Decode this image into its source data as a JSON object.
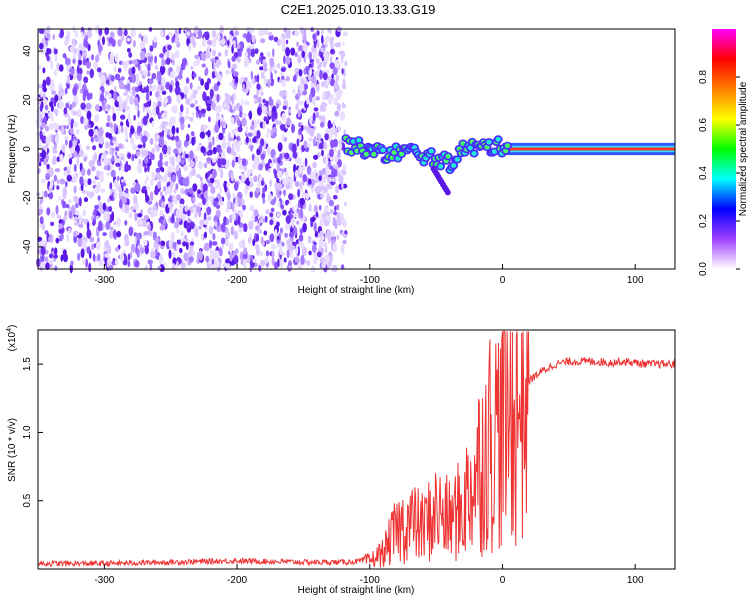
{
  "title": "C2E1.2025.010.13.33.G19",
  "chart_data": [
    {
      "type": "heatmap",
      "xlabel": "Height of straight line (km)",
      "ylabel": "Frequency (Hz)",
      "xlim": [
        -350,
        130
      ],
      "ylim": [
        -49,
        49
      ],
      "x_ticks": [
        -300,
        -200,
        -100,
        0,
        100
      ],
      "y_ticks": [
        -40,
        -20,
        0,
        20,
        40
      ],
      "colorbar": {
        "label": "Normalized spectral amplitude",
        "range": [
          0,
          1
        ],
        "ticks": [
          "0.0",
          "0.2",
          "0.4",
          "0.6",
          "0.8"
        ],
        "colors": [
          "#ffffff",
          "#a040ff",
          "#0000ff",
          "#00ffff",
          "#00ff00",
          "#ffff00",
          "#ff8000",
          "#ff0000",
          "#ff00ff"
        ]
      },
      "regions": [
        {
          "name": "noise",
          "x_range": [
            -350,
            -118
          ],
          "freq_range": [
            -49,
            49
          ],
          "amplitude": 0.12
        },
        {
          "name": "signal",
          "x_range": [
            -118,
            130
          ],
          "center_freq": [
            [
              -118,
              2
            ],
            [
              -90,
              -2
            ],
            [
              -70,
              -1
            ],
            [
              -50,
              -4
            ],
            [
              -40,
              -6
            ],
            [
              -30,
              0
            ],
            [
              -10,
              1
            ],
            [
              0,
              1
            ],
            [
              130,
              0
            ]
          ],
          "amplitude": 0.9
        }
      ]
    },
    {
      "type": "line",
      "xlabel": "Height of straight line (km)",
      "ylabel": "SNR (10 * v/v)",
      "y_multiplier": "(x10",
      "y_multiplier_exp": "4",
      "y_multiplier_close": ")",
      "xlim": [
        -350,
        130
      ],
      "ylim": [
        0,
        1.75
      ],
      "x_ticks": [
        -300,
        -200,
        -100,
        0,
        100
      ],
      "y_ticks": [
        "0.5",
        "1.0",
        "1.5"
      ],
      "color": "#ee3333",
      "series": [
        {
          "x": [
            -350,
            -300,
            -250,
            -200,
            -150,
            -120,
            -100,
            -90,
            -80,
            -70,
            -60,
            -50,
            -40,
            -30,
            -20,
            -10,
            0,
            10,
            20,
            30,
            40,
            50,
            60,
            70,
            80,
            90,
            100,
            110,
            120,
            130
          ],
          "y": [
            0.04,
            0.04,
            0.05,
            0.06,
            0.05,
            0.05,
            0.06,
            0.12,
            0.28,
            0.35,
            0.3,
            0.42,
            0.35,
            0.45,
            0.7,
            0.95,
            1.05,
            1.2,
            1.38,
            1.45,
            1.5,
            1.52,
            1.52,
            1.52,
            1.51,
            1.52,
            1.51,
            1.5,
            1.5,
            1.5
          ]
        }
      ]
    }
  ]
}
